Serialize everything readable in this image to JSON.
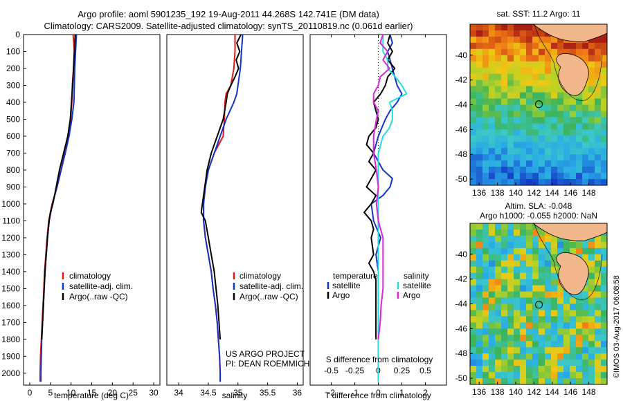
{
  "header": {
    "line1": "Argo profile: aoml 5901235_192 19-Aug-2011 44.268S 142.741E (DM data)",
    "line2": "Climatology: CARS2009. Satellite-adjusted climatology: synTS_20110819.nc (0.061d earlier)"
  },
  "colors": {
    "climatology": "#ee1111",
    "satellite": "#1133cc",
    "argo": "#000000",
    "sat_salinity": "#22dddd",
    "argo_salinity": "#dd22dd",
    "land": "#f2b88c"
  },
  "chart_data": [
    {
      "type": "line",
      "name": "temperature",
      "xlabel": "temperature (deg C)",
      "ylabel": "",
      "xlim": [
        -1.5,
        31.5
      ],
      "ylim": [
        2070,
        0
      ],
      "xticks": [
        0,
        5,
        10,
        15,
        20,
        25,
        30
      ],
      "yticks": [
        0,
        100,
        200,
        300,
        400,
        500,
        600,
        700,
        800,
        900,
        1000,
        1100,
        1200,
        1300,
        1400,
        1500,
        1600,
        1700,
        1800,
        1900,
        2000
      ],
      "legend": [
        "climatology",
        "satellite-adj. clim.",
        "Argo(..raw -QC)"
      ],
      "series": [
        {
          "name": "climatology",
          "depth": [
            0,
            100,
            200,
            300,
            400,
            500,
            600,
            700,
            800,
            900,
            1000,
            1100,
            1200,
            1300,
            1400,
            1500,
            1600,
            1700,
            1800,
            1900,
            2000,
            2050
          ],
          "values": [
            10.5,
            10.8,
            10.6,
            10.3,
            10.2,
            9.9,
            9.2,
            8.5,
            7.6,
            6.6,
            5.4,
            4.6,
            4.2,
            3.9,
            3.6,
            3.4,
            3.2,
            3.0,
            2.8,
            2.6,
            2.5,
            2.5
          ]
        },
        {
          "name": "satellite-adj. clim.",
          "depth": [
            0,
            100,
            200,
            300,
            400,
            500,
            600,
            700,
            800,
            900,
            1000,
            1100,
            1200,
            1300,
            1400,
            1500,
            1600,
            1700,
            1800,
            1900,
            2000,
            2050
          ],
          "values": [
            11.3,
            11.1,
            10.9,
            10.8,
            10.7,
            10.2,
            9.5,
            8.6,
            7.6,
            6.6,
            5.5,
            4.7,
            4.3,
            4.0,
            3.7,
            3.5,
            3.3,
            3.1,
            2.9,
            2.8,
            2.7,
            2.7
          ]
        },
        {
          "name": "Argo(..raw -QC)",
          "depth": [
            0,
            100,
            200,
            300,
            400,
            500,
            600,
            700,
            800,
            900,
            1000,
            1050,
            1100,
            1200,
            1300,
            1400,
            1500,
            1600,
            1700,
            1800
          ],
          "values": [
            11.0,
            10.8,
            10.6,
            10.4,
            10.1,
            9.8,
            9.2,
            8.2,
            7.2,
            6.4,
            5.6,
            5.0,
            4.7,
            4.3,
            4.0,
            3.7,
            3.5,
            3.3,
            3.1,
            2.9
          ]
        }
      ]
    },
    {
      "type": "line",
      "name": "salinity",
      "xlabel": "salinity",
      "xlim": [
        33.8,
        36.1
      ],
      "ylim": [
        2070,
        0
      ],
      "xticks": [
        34,
        34.5,
        35,
        35.5,
        36
      ],
      "legend": [
        "climatology",
        "satellite-adj. clim.",
        "Argo(..raw -QC)"
      ],
      "annotation": [
        "US ARGO PROJECT",
        "PI: DEAN ROEMMICH"
      ],
      "series": [
        {
          "name": "climatology",
          "depth": [
            0,
            100,
            200,
            300,
            350,
            400,
            500,
            600,
            700,
            800,
            900,
            1000,
            1100,
            1200,
            1300,
            1400,
            1500,
            1600,
            1700,
            1800,
            1900,
            2000,
            2050
          ],
          "values": [
            34.95,
            34.95,
            34.93,
            34.88,
            34.8,
            34.78,
            34.77,
            34.75,
            34.6,
            34.5,
            34.44,
            34.42,
            34.42,
            34.45,
            34.5,
            34.55,
            34.58,
            34.62,
            34.65,
            34.67,
            34.69,
            34.7,
            34.7
          ]
        },
        {
          "name": "satellite-adj. clim.",
          "depth": [
            0,
            100,
            200,
            300,
            350,
            400,
            500,
            600,
            700,
            800,
            900,
            1000,
            1100,
            1200,
            1300,
            1400,
            1500,
            1600,
            1700,
            1800,
            1900,
            2000,
            2050
          ],
          "values": [
            35.08,
            35.06,
            35.04,
            35.0,
            34.98,
            34.93,
            34.8,
            34.7,
            34.6,
            34.5,
            34.45,
            34.42,
            34.42,
            34.45,
            34.5,
            34.55,
            34.58,
            34.62,
            34.65,
            34.67,
            34.69,
            34.7,
            34.7
          ]
        },
        {
          "name": "Argo(..raw -QC)",
          "depth": [
            0,
            50,
            100,
            150,
            200,
            250,
            300,
            350,
            400,
            500,
            600,
            700,
            800,
            900,
            1000,
            1050,
            1100,
            1200,
            1300,
            1400,
            1500,
            1600,
            1700,
            1800
          ],
          "values": [
            35.05,
            34.98,
            35.03,
            34.97,
            35.01,
            34.95,
            34.88,
            34.82,
            34.8,
            34.75,
            34.65,
            34.55,
            34.48,
            34.44,
            34.4,
            34.38,
            34.45,
            34.5,
            34.55,
            34.6,
            34.63,
            34.66,
            34.68,
            34.7
          ]
        }
      ]
    },
    {
      "type": "line",
      "name": "difference from climatology",
      "xlabel_top": "S difference from climatology",
      "xlabel": "T difference from climatology",
      "t_xlim": [
        -2.9,
        2.9
      ],
      "t_xticks": [
        -2,
        -1,
        0,
        1,
        2
      ],
      "s_xlim": [
        -0.725,
        0.725
      ],
      "s_xticks": [
        -0.5,
        -0.25,
        0,
        0.25,
        0.5
      ],
      "s_xticklabels": [
        "-0.5",
        "-0.25",
        "0",
        "0.25",
        "0.5"
      ],
      "ylim": [
        2070,
        0
      ],
      "legend_left": [
        "temperature",
        "satellite",
        "Argo"
      ],
      "legend_right": [
        "salinity",
        "satellite",
        "Argo"
      ],
      "series": [
        {
          "name": "satellite",
          "axis": "T",
          "depth": [
            0,
            50,
            100,
            150,
            200,
            250,
            300,
            350,
            400,
            450,
            500,
            600,
            700,
            800,
            850,
            900,
            950,
            1000,
            1100,
            1200,
            1300,
            1400,
            1500,
            1600,
            1700,
            1800
          ],
          "values": [
            0.5,
            0.6,
            0.4,
            0.5,
            0.6,
            0.7,
            0.8,
            1.0,
            0.8,
            0.5,
            0.3,
            0.0,
            -0.2,
            0.2,
            0.6,
            0.5,
            0.2,
            -0.3,
            -0.2,
            0.1,
            -0.1,
            0.0,
            0.0,
            0.0,
            0.0,
            0.0
          ]
        },
        {
          "name": "Argo",
          "axis": "T",
          "depth": [
            0,
            50,
            100,
            150,
            200,
            250,
            300,
            350,
            400,
            450,
            500,
            550,
            600,
            650,
            700,
            750,
            800,
            850,
            900,
            950,
            1000,
            1050,
            1100,
            1150,
            1200,
            1300,
            1350,
            1400,
            1450,
            1500,
            1600,
            1700,
            1800
          ],
          "values": [
            0.5,
            0.4,
            0.6,
            0.4,
            0.7,
            0.4,
            0.3,
            0.1,
            -0.2,
            -0.1,
            0.0,
            -0.1,
            -0.4,
            -0.5,
            -0.2,
            -0.4,
            -0.1,
            -0.3,
            -0.5,
            -0.1,
            -0.3,
            -0.6,
            -0.3,
            -0.2,
            -0.3,
            -0.2,
            -0.4,
            -0.2,
            -0.1,
            -0.1,
            -0.1,
            -0.1,
            -0.1
          ]
        },
        {
          "name": "satellite",
          "axis": "S",
          "depth": [
            0,
            50,
            100,
            150,
            200,
            250,
            300,
            350,
            400,
            450,
            500,
            550,
            600,
            700,
            800,
            900,
            1000,
            1100,
            1200,
            1300,
            1400,
            1500,
            1600,
            1700,
            1800,
            1900,
            2000,
            2050
          ],
          "values": [
            0.05,
            0.05,
            0.05,
            0.1,
            0.1,
            0.18,
            0.25,
            0.3,
            0.12,
            0.15,
            0.15,
            0.12,
            0.05,
            0.0,
            0.0,
            0.0,
            0.0,
            0.0,
            0.0,
            0.0,
            0.0,
            0.0,
            0.0,
            0.0,
            0.0,
            0.0,
            0.0,
            0.0
          ]
        },
        {
          "name": "Argo",
          "axis": "S",
          "depth": [
            0,
            50,
            100,
            150,
            200,
            250,
            300,
            350,
            400,
            450,
            500,
            600,
            700,
            800,
            900,
            1000,
            1100,
            1200,
            1300,
            1400,
            1500,
            1600,
            1700,
            1800
          ],
          "values": [
            0.05,
            0.02,
            0.1,
            0.05,
            0.12,
            0.02,
            0.0,
            -0.05,
            -0.05,
            0.0,
            -0.02,
            -0.05,
            -0.05,
            -0.02,
            0.0,
            -0.02,
            0.0,
            0.05,
            0.05,
            0.05,
            0.05,
            0.03,
            0.02,
            0.0
          ]
        }
      ]
    }
  ],
  "maps": [
    {
      "title_lines": [
        "sat. SST: 11.2  Argo: 11"
      ],
      "xticks": [
        136,
        138,
        140,
        142,
        144,
        146,
        148
      ],
      "yticks": [
        -40,
        -42,
        -44,
        -46,
        -48,
        -50
      ],
      "xlim": [
        135,
        150
      ],
      "ylim": [
        -50.5,
        -37.5
      ],
      "marker": [
        142.741,
        -44.268
      ]
    },
    {
      "title_lines": [
        "Altim. SLA: -0.048",
        "Argo h1000: -0.055 h2000: NaN"
      ],
      "xticks": [
        136,
        138,
        140,
        142,
        144,
        146,
        148
      ],
      "yticks": [
        -40,
        -42,
        -44,
        -46,
        -48,
        -50
      ],
      "xlim": [
        135,
        150
      ],
      "ylim": [
        -50.5,
        -37.5
      ],
      "marker": [
        142.741,
        -44.268
      ]
    }
  ],
  "watermark": "©IMOS 03-Aug-2017 06:08:58"
}
